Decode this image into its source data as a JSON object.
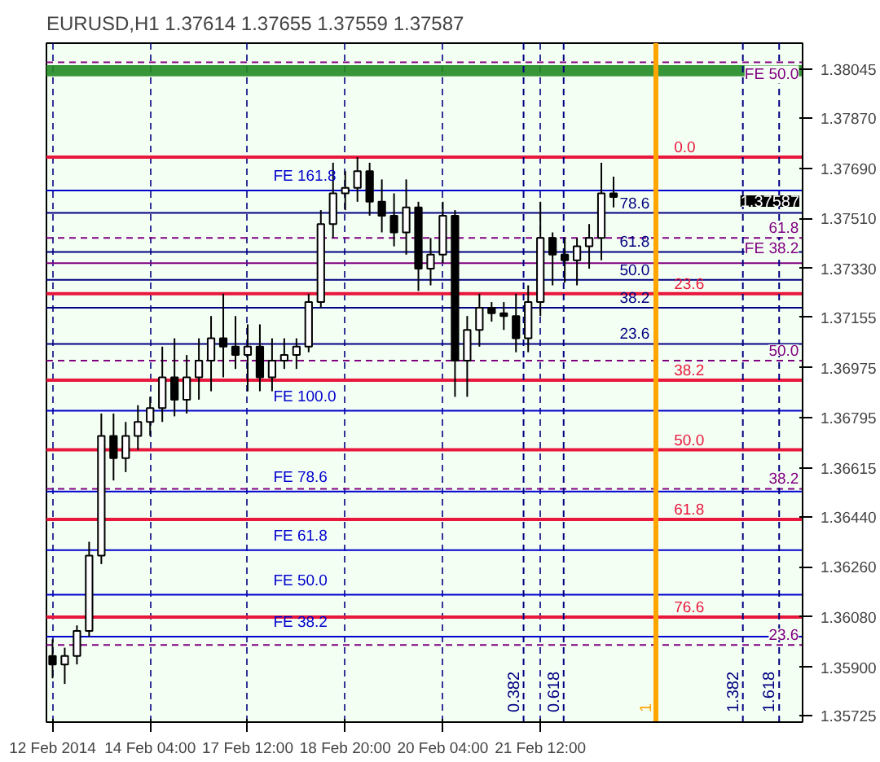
{
  "chart_data": {
    "type": "candlestick",
    "title": "EURUSD,H1  1.37614 1.37655 1.37559 1.37587",
    "categories": [
      "12 Feb 2014",
      null,
      null,
      null,
      null,
      null,
      null,
      null,
      "14 Feb 04:00",
      null,
      null,
      null,
      null,
      null,
      null,
      null,
      "17 Feb 12:00",
      null,
      null,
      null,
      null,
      null,
      null,
      null,
      "18 Feb 20:00",
      null,
      null,
      null,
      null,
      null,
      null,
      null,
      "20 Feb 04:00",
      null,
      null,
      null,
      null,
      null,
      null,
      null,
      "21 Feb 12:00",
      null,
      null,
      null,
      null,
      null,
      null,
      null,
      null,
      null,
      null,
      null,
      null,
      null,
      null,
      null,
      null,
      null,
      null,
      null,
      null,
      null
    ],
    "ohlc": [
      [
        1.3594,
        1.36,
        1.3586,
        1.3591
      ],
      [
        1.3591,
        1.3597,
        1.3584,
        1.3594
      ],
      [
        1.3594,
        1.3605,
        1.3591,
        1.3603
      ],
      [
        1.3603,
        1.3635,
        1.3601,
        1.363
      ],
      [
        1.363,
        1.3681,
        1.3627,
        1.3673
      ],
      [
        1.3673,
        1.3681,
        1.3657,
        1.3665
      ],
      [
        1.3665,
        1.3678,
        1.366,
        1.3673
      ],
      [
        1.3673,
        1.3684,
        1.3668,
        1.3678
      ],
      [
        1.3678,
        1.3687,
        1.3673,
        1.3683
      ],
      [
        1.3683,
        1.3705,
        1.3678,
        1.3694
      ],
      [
        1.3694,
        1.3708,
        1.368,
        1.3686
      ],
      [
        1.3686,
        1.3702,
        1.3681,
        1.3694
      ],
      [
        1.3694,
        1.3708,
        1.3686,
        1.37
      ],
      [
        1.37,
        1.3716,
        1.3689,
        1.3708
      ],
      [
        1.3708,
        1.3724,
        1.3694,
        1.3705
      ],
      [
        1.3705,
        1.3716,
        1.3697,
        1.3702
      ],
      [
        1.3702,
        1.3713,
        1.3689,
        1.3705
      ],
      [
        1.3705,
        1.3713,
        1.3689,
        1.3694
      ],
      [
        1.3694,
        1.3708,
        1.3689,
        1.37
      ],
      [
        1.37,
        1.3708,
        1.3697,
        1.3702
      ],
      [
        1.3702,
        1.3708,
        1.3697,
        1.3705
      ],
      [
        1.3705,
        1.3724,
        1.3703,
        1.3721
      ],
      [
        1.3721,
        1.3754,
        1.3719,
        1.3749
      ],
      [
        1.3749,
        1.3771,
        1.3744,
        1.376
      ],
      [
        1.376,
        1.3768,
        1.3754,
        1.3762
      ],
      [
        1.3762,
        1.3773,
        1.3757,
        1.3768
      ],
      [
        1.3768,
        1.3771,
        1.3752,
        1.3757
      ],
      [
        1.3757,
        1.3765,
        1.3746,
        1.3752
      ],
      [
        1.3752,
        1.376,
        1.3741,
        1.3746
      ],
      [
        1.3746,
        1.3765,
        1.3738,
        1.3755
      ],
      [
        1.3755,
        1.3757,
        1.3725,
        1.3733
      ],
      [
        1.3733,
        1.3744,
        1.3727,
        1.3738
      ],
      [
        1.3738,
        1.3757,
        1.3735,
        1.3752
      ],
      [
        1.3752,
        1.3754,
        1.3687,
        1.37
      ],
      [
        1.37,
        1.3716,
        1.3687,
        1.3711
      ],
      [
        1.3711,
        1.3724,
        1.3705,
        1.3719
      ],
      [
        1.3719,
        1.3721,
        1.3714,
        1.3717
      ],
      [
        1.3717,
        1.3721,
        1.3711,
        1.3716
      ],
      [
        1.3716,
        1.3724,
        1.3703,
        1.3708
      ],
      [
        1.3708,
        1.3727,
        1.3703,
        1.3721
      ],
      [
        1.3721,
        1.3757,
        1.3716,
        1.3744
      ],
      [
        1.3744,
        1.3746,
        1.3727,
        1.3738
      ],
      [
        1.3738,
        1.3744,
        1.3728,
        1.3736
      ],
      [
        1.3736,
        1.3744,
        1.3727,
        1.3741
      ],
      [
        1.3741,
        1.3749,
        1.3733,
        1.3744
      ],
      [
        1.3744,
        1.3771,
        1.3736,
        1.376
      ],
      [
        1.376,
        1.3766,
        1.3755,
        1.37587
      ],
      null,
      null,
      null,
      null,
      null,
      null,
      null,
      null,
      null,
      null,
      null,
      null,
      null,
      null,
      null
    ],
    "color": "#000000",
    "ylim": [
      1.35703,
      1.38139
    ],
    "yticks": [
      {
        "value": 1.38045,
        "label": "1.38045"
      },
      {
        "value": 1.3787,
        "label": "1.37870"
      },
      {
        "value": 1.3769,
        "label": "1.37690"
      },
      {
        "value": 1.3751,
        "label": "1.37510"
      },
      {
        "value": 1.3733,
        "label": "1.37330"
      },
      {
        "value": 1.37155,
        "label": "1.37155"
      },
      {
        "value": 1.36975,
        "label": "1.36975"
      },
      {
        "value": 1.36795,
        "label": "1.36795"
      },
      {
        "value": 1.36615,
        "label": "1.36615"
      },
      {
        "value": 1.3644,
        "label": "1.36440"
      },
      {
        "value": 1.3626,
        "label": "1.36260"
      },
      {
        "value": 1.3608,
        "label": "1.36080"
      },
      {
        "value": 1.359,
        "label": "1.35900"
      },
      {
        "value": 1.35725,
        "label": "1.35725"
      }
    ],
    "ref_lines": [
      {
        "axis": "y",
        "value": 1.3773,
        "color": "#e8173c",
        "line_style": "solid"
      },
      {
        "axis": "y",
        "value": 1.3724,
        "color": "#e8173c",
        "line_style": "solid"
      },
      {
        "axis": "y",
        "value": 1.3693,
        "color": "#e8173c",
        "line_style": "solid"
      },
      {
        "axis": "y",
        "value": 1.3668,
        "color": "#e8173c",
        "line_style": "solid"
      },
      {
        "axis": "y",
        "value": 1.3643,
        "color": "#e8173c",
        "line_style": "solid"
      },
      {
        "axis": "y",
        "value": 1.3608,
        "color": "#e8173c",
        "line_style": "solid"
      },
      {
        "axis": "y",
        "value": 1.3807,
        "color": "#800080",
        "line_style": "dashed"
      },
      {
        "axis": "y",
        "value": 1.3744,
        "color": "#800080",
        "line_style": "dashed"
      },
      {
        "axis": "y",
        "value": 1.3735,
        "color": "#800080",
        "line_style": "solid"
      },
      {
        "axis": "y",
        "value": 1.37,
        "color": "#800080",
        "line_style": "dashed"
      },
      {
        "axis": "y",
        "value": 1.3654,
        "color": "#800080",
        "line_style": "dashed"
      },
      {
        "axis": "y",
        "value": 1.3598,
        "color": "#800080",
        "line_style": "dashed"
      },
      {
        "axis": "y",
        "value": 1.3761,
        "color": "#0000cd",
        "line_style": "solid"
      },
      {
        "axis": "y",
        "value": 1.3682,
        "color": "#0000cd",
        "line_style": "solid"
      },
      {
        "axis": "y",
        "value": 1.3653,
        "color": "#0000cd",
        "line_style": "solid"
      },
      {
        "axis": "y",
        "value": 1.3632,
        "color": "#0000cd",
        "line_style": "solid"
      },
      {
        "axis": "y",
        "value": 1.3616,
        "color": "#0000cd",
        "line_style": "solid"
      },
      {
        "axis": "y",
        "value": 1.3601,
        "color": "#0000cd",
        "line_style": "solid"
      },
      {
        "axis": "y",
        "value": 1.3753,
        "color": "#000080",
        "line_style": "solid"
      },
      {
        "axis": "y",
        "value": 1.3739,
        "color": "#000080",
        "line_style": "solid"
      },
      {
        "axis": "y",
        "value": 1.3729,
        "color": "#000080",
        "line_style": "solid"
      },
      {
        "axis": "y",
        "value": 1.3719,
        "color": "#000080",
        "line_style": "solid"
      },
      {
        "axis": "y",
        "value": 1.3706,
        "color": "#000080",
        "line_style": "solid"
      }
    ],
    "bands": [
      {
        "axis": "y",
        "from": 1.3802,
        "to": 1.3806,
        "color": "#228b22"
      }
    ],
    "annotations": [
      {
        "text": "0.0",
        "y": 1.3773
      },
      {
        "text": "23.6",
        "y": 1.3724
      },
      {
        "text": "38.2",
        "y": 1.3693
      },
      {
        "text": "50.0",
        "y": 1.3668
      },
      {
        "text": "61.8",
        "y": 1.3643
      },
      {
        "text": "76.6",
        "y": 1.3608
      },
      {
        "text": "FE 50.0",
        "y": 1.3807
      },
      {
        "text": "61.8",
        "y": 1.3744
      },
      {
        "text": "FE 38.2",
        "y": 1.3735
      },
      {
        "text": "50.0",
        "y": 1.37
      },
      {
        "text": "38.2",
        "y": 1.3654
      },
      {
        "text": "23.6",
        "y": 1.3598
      },
      {
        "text": "FE 161.8",
        "y": 1.3761
      },
      {
        "text": "FE 100.0",
        "y": 1.3682
      },
      {
        "text": "FE 78.6",
        "y": 1.3653
      },
      {
        "text": "FE 61.8",
        "y": 1.3632
      },
      {
        "text": "FE 50.0",
        "y": 1.3616
      },
      {
        "text": "FE 38.2",
        "y": 1.3601
      },
      {
        "text": "78.6",
        "y": 1.3753
      },
      {
        "text": "61.8",
        "y": 1.3739
      },
      {
        "text": "50.0",
        "y": 1.3729
      },
      {
        "text": "38.2",
        "y": 1.3719
      },
      {
        "text": "23.6",
        "y": 1.3706
      },
      "0.382",
      "0.618",
      "1",
      "1.382",
      "1.618",
      {
        "text": "1.37587",
        "y": 1.37587
      }
    ],
    "grid": "x"
  }
}
